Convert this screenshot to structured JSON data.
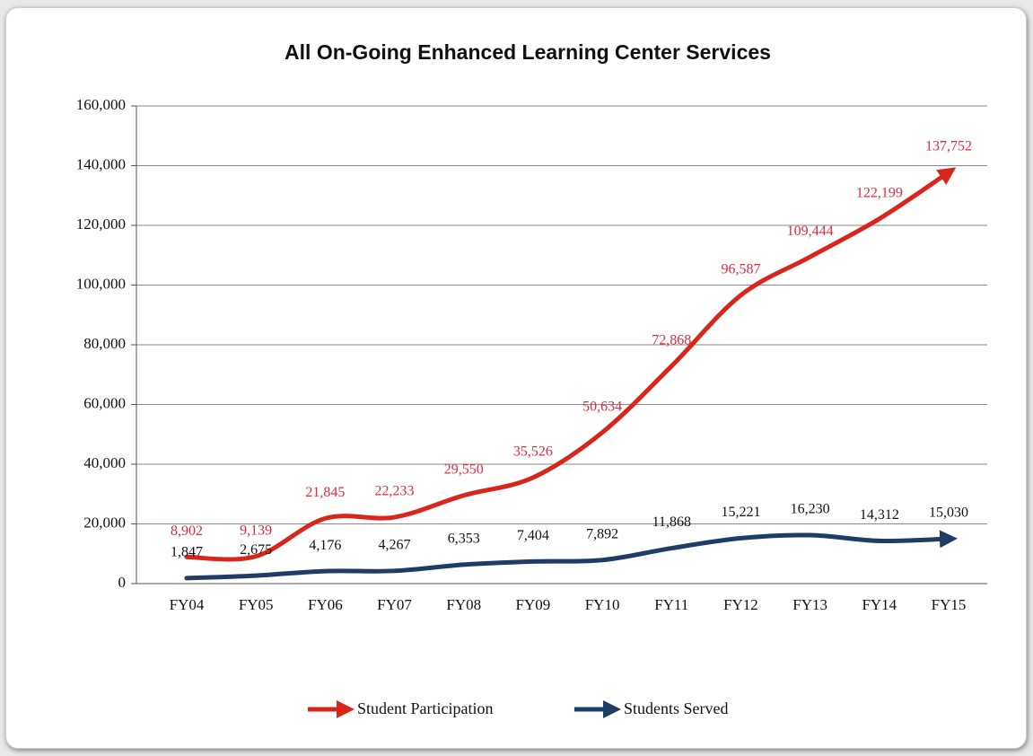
{
  "chart_data": {
    "type": "line",
    "title": "All On-Going Enhanced Learning Center Services",
    "categories": [
      "FY04",
      "FY05",
      "FY06",
      "FY07",
      "FY08",
      "FY09",
      "FY10",
      "FY11",
      "FY12",
      "FY13",
      "FY14",
      "FY15"
    ],
    "series": [
      {
        "name": "Student Participation",
        "color": "#d9261c",
        "label_color": "#e02a3e",
        "values": [
          8902,
          9139,
          21845,
          22233,
          29550,
          35526,
          50634,
          72868,
          96587,
          109444,
          122199,
          137752
        ],
        "value_labels": [
          "8,902",
          "9,139",
          "21,845",
          "22,233",
          "29,550",
          "35,526",
          "50,634",
          "72,868",
          "96,587",
          "109,444",
          "122,199",
          "137,752"
        ]
      },
      {
        "name": "Students Served",
        "color": "#1f3c66",
        "label_color": "#111111",
        "values": [
          1847,
          2675,
          4176,
          4267,
          6353,
          7404,
          7892,
          11868,
          15221,
          16230,
          14312,
          15030
        ],
        "value_labels": [
          "1,847",
          "2,675",
          "4,176",
          "4,267",
          "6,353",
          "7,404",
          "7,892",
          "11,868",
          "15,221",
          "16,230",
          "14,312",
          "15,030"
        ]
      }
    ],
    "ylim": [
      0,
      160000
    ],
    "yticks": [
      0,
      {
        "value": 20000,
        "label": "20,000"
      },
      {
        "value": 40000,
        "label": "40,000"
      },
      {
        "value": 60000,
        "label": "60,000"
      },
      {
        "value": 80000,
        "label": "80,000"
      },
      {
        "value": 100000,
        "label": "100,000"
      },
      {
        "value": 120000,
        "label": "120,000"
      },
      {
        "value": 140000,
        "label": "140,000"
      },
      {
        "value": 160000,
        "label": "160,000"
      }
    ],
    "grid": true,
    "legend": "bottom"
  }
}
